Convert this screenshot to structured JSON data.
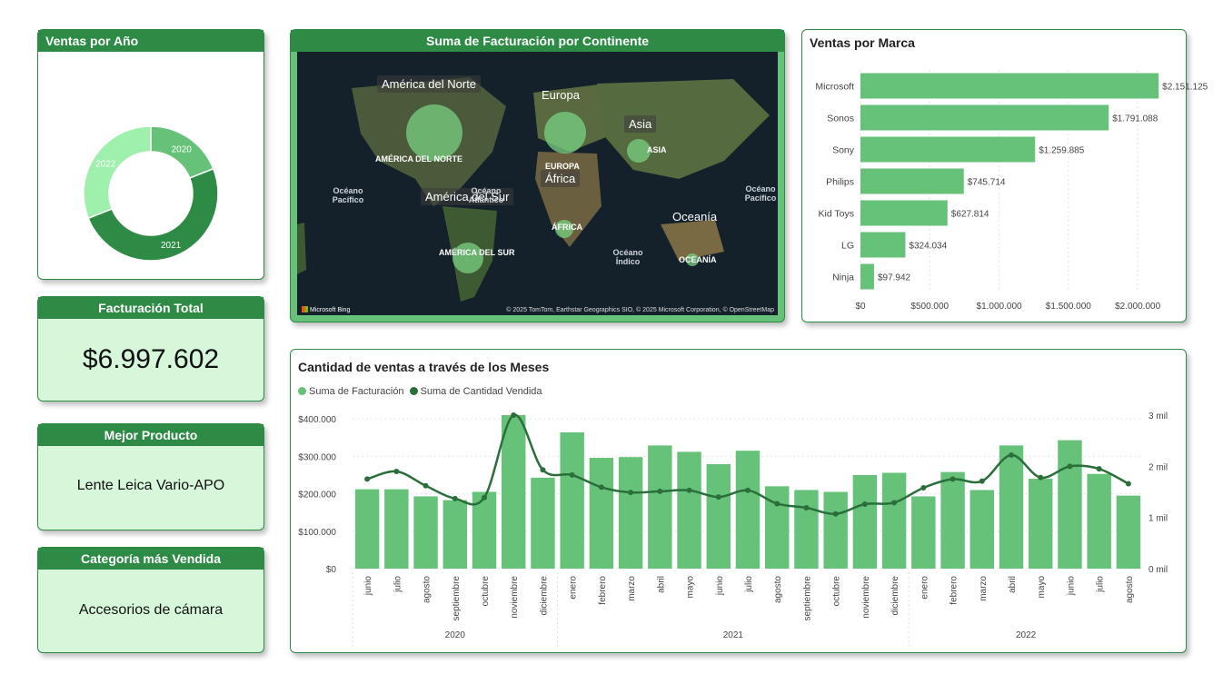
{
  "colors": {
    "dark_green": "#2e8b46",
    "light_green": "#66c279",
    "pale_green": "#d6f7d9",
    "line_green": "#2a6e3a"
  },
  "cards": {
    "ventas_ano_title": "Ventas por Año",
    "mapa_title": "Suma de Facturación por Continente",
    "marca_title": "Ventas por Marca",
    "facturacion_title": "Facturación Total",
    "facturacion_value": "$6.997.602",
    "mejor_producto_title": "Mejor Producto",
    "mejor_producto_value": "Lente Leica Vario-APO",
    "categoria_title": "Categoría más Vendida",
    "categoria_value": "Accesorios de cámara",
    "meses_title": "Cantidad de ventas a través de los Meses"
  },
  "map": {
    "labels": [
      {
        "name": "América del Norte",
        "overlay": "AMÉRICA DEL NORTE"
      },
      {
        "name": "Europa",
        "overlay": "EUROPA"
      },
      {
        "name": "Asia",
        "overlay": "ASIA"
      },
      {
        "name": "África",
        "overlay": "ÁFRICA"
      },
      {
        "name": "América del Sur",
        "overlay": "AMÉRICA DEL SUR"
      },
      {
        "name": "Oceanía",
        "overlay": "OCEANÍA"
      }
    ],
    "oceans": [
      "Océano Pacífico",
      "Océano Atlántico",
      "Océano Índico",
      "Océano Pacífico"
    ],
    "bing": "Microsoft Bing",
    "copyright": "© 2025 TomTom, Earthstar Geographics SIO, © 2025 Microsoft Corporation, © OpenStreetMap"
  },
  "chart_data": [
    {
      "type": "pie",
      "variant": "donut",
      "title": "Ventas por Año",
      "categories": [
        "2020",
        "2021",
        "2022"
      ],
      "values": [
        19,
        50,
        31
      ],
      "colors": [
        "#66c279",
        "#2e8b46",
        "#9ef0ac"
      ]
    },
    {
      "type": "bar",
      "orientation": "horizontal",
      "title": "Ventas por Marca",
      "categories": [
        "Microsoft",
        "Sonos",
        "Sony",
        "Philips",
        "Kid Toys",
        "LG",
        "Ninja"
      ],
      "values": [
        2151125,
        1791088,
        1259885,
        745714,
        627814,
        324034,
        97942
      ],
      "data_labels": [
        "$2.151.125",
        "$1.791.088",
        "$1.259.885",
        "$745.714",
        "$627.814",
        "$324.034",
        "$97.942"
      ],
      "xlim": [
        0,
        2150000
      ],
      "x_ticks": [
        0,
        500000,
        1000000,
        1500000,
        2000000
      ],
      "x_tick_labels": [
        "$0",
        "$500.000",
        "$1.000.000",
        "$1.500.000",
        "$2.000.000"
      ],
      "grid": true
    },
    {
      "type": "bar",
      "combo": "bar+line",
      "title": "Cantidad de ventas a través de los Meses",
      "categories": [
        "junio",
        "julio",
        "agosto",
        "septiembre",
        "octubre",
        "noviembre",
        "diciembre",
        "enero",
        "febrero",
        "marzo",
        "abril",
        "mayo",
        "junio",
        "julio",
        "agosto",
        "septiembre",
        "octubre",
        "noviembre",
        "diciembre",
        "enero",
        "febrero",
        "marzo",
        "abril",
        "mayo",
        "junio",
        "julio",
        "agosto"
      ],
      "year_groups": [
        {
          "label": "2020",
          "count": 7
        },
        {
          "label": "2021",
          "count": 12
        },
        {
          "label": "2022",
          "count": 8
        }
      ],
      "series": [
        {
          "name": "Suma de Facturación",
          "type": "bar",
          "axis": "left",
          "values": [
            212000,
            212000,
            193000,
            183000,
            205000,
            410000,
            243000,
            364000,
            296000,
            298000,
            329000,
            312000,
            279000,
            315000,
            220000,
            210000,
            205000,
            250000,
            256000,
            193000,
            258000,
            210000,
            329000,
            240000,
            343000,
            253000,
            195000
          ]
        },
        {
          "name": "Suma de Cantidad Vendida",
          "type": "line",
          "axis": "right",
          "values": [
            1750,
            1900,
            1620,
            1370,
            1390,
            3000,
            1930,
            1830,
            1590,
            1490,
            1510,
            1530,
            1400,
            1530,
            1270,
            1190,
            1070,
            1260,
            1290,
            1580,
            1750,
            1710,
            2220,
            1780,
            2000,
            1950,
            1660
          ]
        }
      ],
      "y_left": {
        "range": [
          0,
          410000
        ],
        "ticks": [
          0,
          100000,
          200000,
          300000,
          400000
        ],
        "tick_labels": [
          "$0",
          "$100.000",
          "$200.000",
          "$300.000",
          "$400.000"
        ]
      },
      "y_right": {
        "range": [
          0,
          3000
        ],
        "ticks": [
          0,
          1000,
          2000,
          3000
        ],
        "tick_labels": [
          "0 mil",
          "1 mil",
          "2 mil",
          "3 mil"
        ]
      },
      "legend": "top-left",
      "grid": true
    }
  ]
}
